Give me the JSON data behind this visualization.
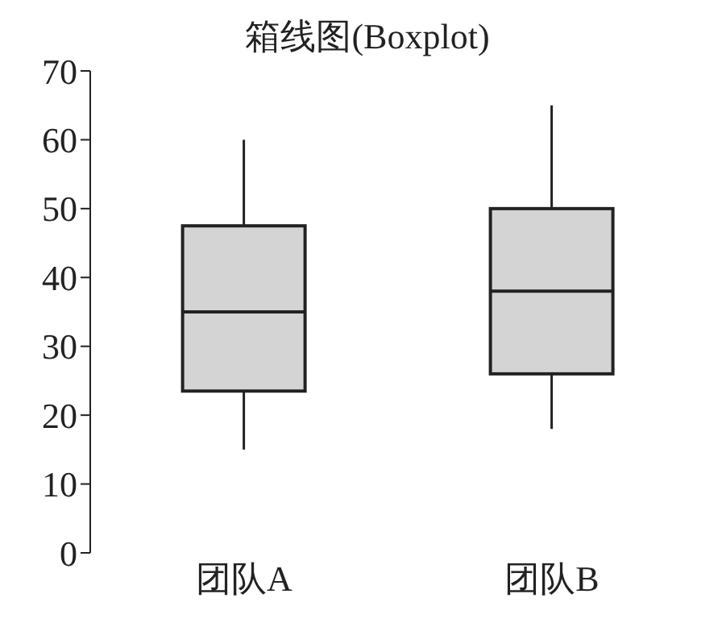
{
  "chart_data": {
    "type": "box",
    "title": "箱线图(Boxplot)",
    "categories": [
      "团队A",
      "团队B"
    ],
    "color": "#d4d4d4",
    "boxes": [
      {
        "low": 15,
        "q1": 23.5,
        "median": 35,
        "q3": 47.5,
        "high": 60
      },
      {
        "low": 18,
        "q1": 26,
        "median": 38,
        "q3": 50,
        "high": 65
      }
    ],
    "ylim": [
      0,
      70
    ],
    "yticks": [
      0,
      10,
      20,
      30,
      40,
      50,
      60,
      70
    ]
  }
}
